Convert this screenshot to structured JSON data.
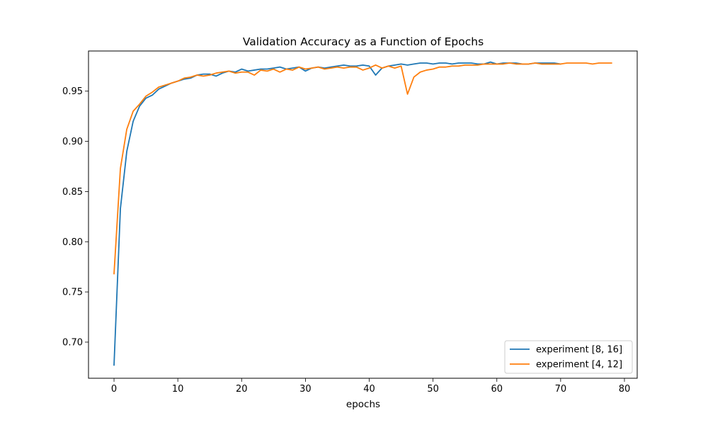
{
  "chart_data": {
    "type": "line",
    "title": "Validation Accuracy as a Function of Epochs",
    "xlabel": "epochs",
    "ylabel": "",
    "xlim": [
      -4,
      82
    ],
    "ylim": [
      0.664,
      0.99
    ],
    "xticks": [
      0,
      10,
      20,
      30,
      40,
      50,
      60,
      70,
      80
    ],
    "yticks": [
      0.7,
      0.75,
      0.8,
      0.85,
      0.9,
      0.95
    ],
    "ytick_labels": [
      "0.70",
      "0.75",
      "0.80",
      "0.85",
      "0.90",
      "0.95"
    ],
    "grid": false,
    "legend_position": "lower-right",
    "series": [
      {
        "name": "experiment [8, 16]",
        "color": "#1f77b4",
        "x": [
          0,
          1,
          2,
          3,
          4,
          5,
          6,
          7,
          8,
          9,
          10,
          11,
          12,
          13,
          14,
          15,
          16,
          17,
          18,
          19,
          20,
          21,
          22,
          23,
          24,
          25,
          26,
          27,
          28,
          29,
          30,
          31,
          32,
          33,
          34,
          35,
          36,
          37,
          38,
          39,
          40,
          41,
          42,
          43,
          44,
          45,
          46,
          47,
          48,
          49,
          50,
          51,
          52,
          53,
          54,
          55,
          56,
          57,
          58,
          59,
          60,
          61,
          62,
          63,
          64,
          65,
          66,
          67,
          68,
          69,
          70
        ],
        "y": [
          0.677,
          0.833,
          0.89,
          0.92,
          0.935,
          0.943,
          0.946,
          0.952,
          0.955,
          0.958,
          0.96,
          0.962,
          0.963,
          0.966,
          0.967,
          0.967,
          0.965,
          0.968,
          0.97,
          0.969,
          0.972,
          0.97,
          0.971,
          0.972,
          0.972,
          0.973,
          0.974,
          0.972,
          0.973,
          0.974,
          0.97,
          0.973,
          0.974,
          0.973,
          0.974,
          0.975,
          0.976,
          0.975,
          0.975,
          0.976,
          0.975,
          0.966,
          0.973,
          0.975,
          0.976,
          0.977,
          0.976,
          0.977,
          0.978,
          0.978,
          0.977,
          0.978,
          0.978,
          0.977,
          0.978,
          0.978,
          0.978,
          0.977,
          0.977,
          0.979,
          0.977,
          0.978,
          0.978,
          0.978,
          0.977,
          0.977,
          0.978,
          0.978,
          0.978,
          0.978,
          0.977
        ]
      },
      {
        "name": "experiment [4, 12]",
        "color": "#ff7f0e",
        "x": [
          0,
          1,
          2,
          3,
          4,
          5,
          6,
          7,
          8,
          9,
          10,
          11,
          12,
          13,
          14,
          15,
          16,
          17,
          18,
          19,
          20,
          21,
          22,
          23,
          24,
          25,
          26,
          27,
          28,
          29,
          30,
          31,
          32,
          33,
          34,
          35,
          36,
          37,
          38,
          39,
          40,
          41,
          42,
          43,
          44,
          45,
          46,
          47,
          48,
          49,
          50,
          51,
          52,
          53,
          54,
          55,
          56,
          57,
          58,
          59,
          60,
          61,
          62,
          63,
          64,
          65,
          66,
          67,
          68,
          69,
          70,
          71,
          72,
          73,
          74,
          75,
          76,
          77,
          78
        ],
        "y": [
          0.768,
          0.873,
          0.912,
          0.93,
          0.937,
          0.945,
          0.949,
          0.954,
          0.956,
          0.958,
          0.96,
          0.963,
          0.964,
          0.966,
          0.965,
          0.966,
          0.968,
          0.969,
          0.97,
          0.968,
          0.969,
          0.969,
          0.966,
          0.971,
          0.97,
          0.972,
          0.969,
          0.972,
          0.971,
          0.974,
          0.972,
          0.973,
          0.974,
          0.972,
          0.973,
          0.974,
          0.973,
          0.974,
          0.974,
          0.971,
          0.973,
          0.976,
          0.973,
          0.975,
          0.973,
          0.975,
          0.947,
          0.964,
          0.969,
          0.971,
          0.972,
          0.974,
          0.974,
          0.975,
          0.975,
          0.976,
          0.976,
          0.976,
          0.977,
          0.977,
          0.977,
          0.977,
          0.978,
          0.977,
          0.977,
          0.977,
          0.978,
          0.977,
          0.977,
          0.977,
          0.977,
          0.978,
          0.978,
          0.978,
          0.978,
          0.977,
          0.978,
          0.978,
          0.978
        ]
      }
    ]
  }
}
